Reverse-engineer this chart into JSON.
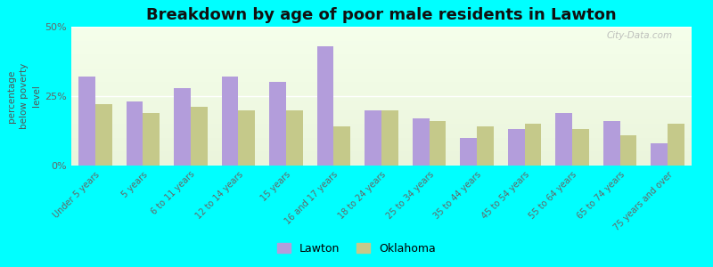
{
  "title": "Breakdown by age of poor male residents in Lawton",
  "ylabel": "percentage\nbelow poverty\nlevel",
  "categories": [
    "Under 5 years",
    "5 years",
    "6 to 11 years",
    "12 to 14 years",
    "15 years",
    "16 and 17 years",
    "18 to 24 years",
    "25 to 34 years",
    "35 to 44 years",
    "45 to 54 years",
    "55 to 64 years",
    "65 to 74 years",
    "75 years and over"
  ],
  "lawton_values": [
    32,
    23,
    28,
    32,
    30,
    43,
    20,
    17,
    10,
    13,
    19,
    16,
    8
  ],
  "oklahoma_values": [
    22,
    19,
    21,
    20,
    20,
    14,
    20,
    16,
    14,
    15,
    13,
    11,
    15
  ],
  "lawton_color": "#b39ddb",
  "oklahoma_color": "#c5c98a",
  "background_color": "#00ffff",
  "ylim": [
    0,
    50
  ],
  "ytick_labels": [
    "0%",
    "25%",
    "50%"
  ],
  "ytick_values": [
    0,
    25,
    50
  ],
  "bar_width": 0.35,
  "title_fontsize": 13,
  "legend_labels": [
    "Lawton",
    "Oklahoma"
  ],
  "watermark": "City-Data.com"
}
